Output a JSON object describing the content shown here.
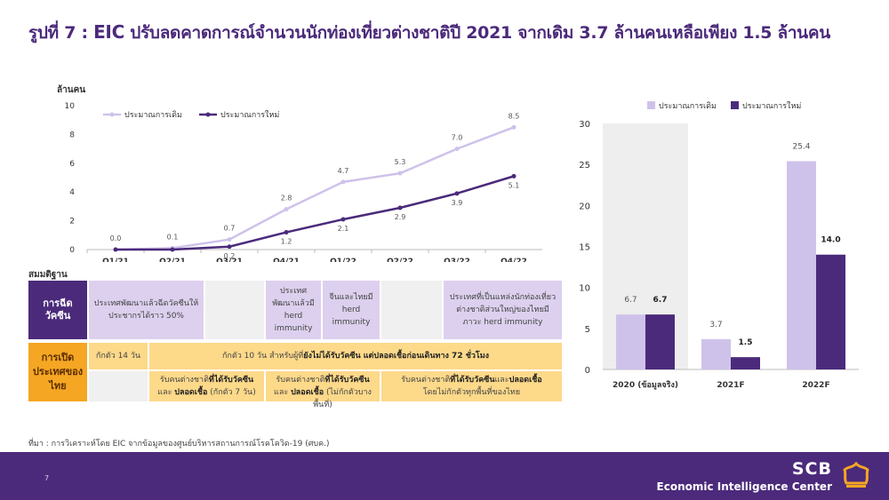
{
  "title": {
    "prefix": "รูปที่ 7 : ",
    "eic": "EIC",
    "text": " ปรับลดคาดการณ์จำนวนนักท่องเที่ยวต่างชาติปี 2021 จากเดิม 3.7 ล้านคนเหลือเพียง 1.5 ล้านคน"
  },
  "chart_data": [
    {
      "type": "line",
      "ylabel": "ล้านคน",
      "ylim": [
        0,
        10
      ],
      "yticks": [
        "0",
        "2",
        "4",
        "6",
        "8",
        "10"
      ],
      "categories": [
        "Q1/21",
        "Q2/21",
        "Q3/21",
        "Q4/21",
        "Q1/22",
        "Q2/22",
        "Q3/22",
        "Q4/22"
      ],
      "legend_position": "top-left",
      "grid": false,
      "series": [
        {
          "name": "ประมาณการเดิม",
          "color": "#cfc2ea",
          "values": [
            0.0,
            0.1,
            0.7,
            2.8,
            4.7,
            5.3,
            7.0,
            8.5
          ],
          "labels": [
            "0.0",
            "0.1",
            "0.7",
            "2.8",
            "4.7",
            "5.3",
            "7.0",
            "8.5"
          ]
        },
        {
          "name": "ประมาณการใหม่",
          "color": "#4b2a7b",
          "values": [
            0.0,
            0.0,
            0.2,
            1.2,
            2.1,
            2.9,
            3.9,
            5.1
          ],
          "labels": [
            "",
            "",
            "0.2",
            "1.2",
            "2.1",
            "2.9",
            "3.9",
            "5.1"
          ]
        }
      ]
    },
    {
      "type": "bar",
      "ylim": [
        0,
        30
      ],
      "yticks": [
        "0",
        "5",
        "10",
        "15",
        "20",
        "25",
        "30"
      ],
      "categories": [
        "2020 (ข้อมูลจริง)",
        "2021F",
        "2022F"
      ],
      "legend_position": "top",
      "grid": false,
      "series": [
        {
          "name": "ประมาณการเดิม",
          "color": "#cfc2ea",
          "values": [
            6.7,
            3.7,
            25.4
          ],
          "labels": [
            "6.7",
            "3.7",
            "25.4"
          ]
        },
        {
          "name": "ประมาณการใหม่",
          "color": "#4b2a7b",
          "values": [
            6.7,
            1.5,
            14.0
          ],
          "labels": [
            "6.7",
            "1.5",
            "14.0"
          ]
        }
      ]
    }
  ],
  "assumptions": {
    "heading": "สมมติฐาน",
    "vaccine_header": "การฉีดวัคซีน",
    "vaccine_cells": [
      "ประเทศพัฒนาแล้วฉีดวัคซีนให้ประชากรได้ราว 50%",
      "ประเทศพัฒนาแล้วมี herd immunity",
      "จีนและไทยมี herd immunity",
      "ประเทศที่เป็นแหล่งนักท่องเที่ยวต่างชาติส่วนใหญ่ของไทยมีภาวะ herd immunity"
    ],
    "open_header": "การเปิดประเทศของไทย",
    "quarantine_14": "กักตัว 14 วัน",
    "quarantine_10_pre": "กักตัว 10 วัน สำหรับผู้ที่",
    "quarantine_10_bold": "ยังไม่ได้รับวัคซีน แต่ปลอดเชื้อก่อนเดินทาง 72 ชั่วโมง",
    "cell_a_pre": "รับคนต่างชาติ",
    "cell_a_bold1": "ที่ได้รับวัคซีน",
    "cell_a_mid": "และ",
    "cell_a_bold2": "ปลอดเชื้อ",
    "cell_a_post": " (กักตัว 7 วัน)",
    "cell_b_pre": "รับคนต่างชาติ",
    "cell_b_bold1": "ที่ได้รับวัคซีน",
    "cell_b_mid": "และ",
    "cell_b_bold2": "ปลอดเชื้อ",
    "cell_b_post": " (ไม่กักตัวบางพื้นที่)",
    "cell_c_pre": "รับคนต่างชาติ",
    "cell_c_bold1": "ที่ได้รับวัคซีน",
    "cell_c_mid": "และ",
    "cell_c_bold2": "ปลอดเชื้อ",
    "cell_c_post": "โดยไม่กักตัวทุกพื้นที่ของไทย"
  },
  "source": "ที่มา : การวิเคราะห์โดย EIC จากข้อมูลของศูนย์บริหารสถานการณ์โรคโควิด-19 (ศบค.)",
  "footer": {
    "page": "7",
    "brand": "SCB",
    "subbrand": "Economic Intelligence Center"
  },
  "colors": {
    "old_forecast": "#cfc2ea",
    "new_forecast": "#4b2a7b",
    "accent_orange": "#f5a623",
    "table_yellow": "#fdd98a"
  }
}
